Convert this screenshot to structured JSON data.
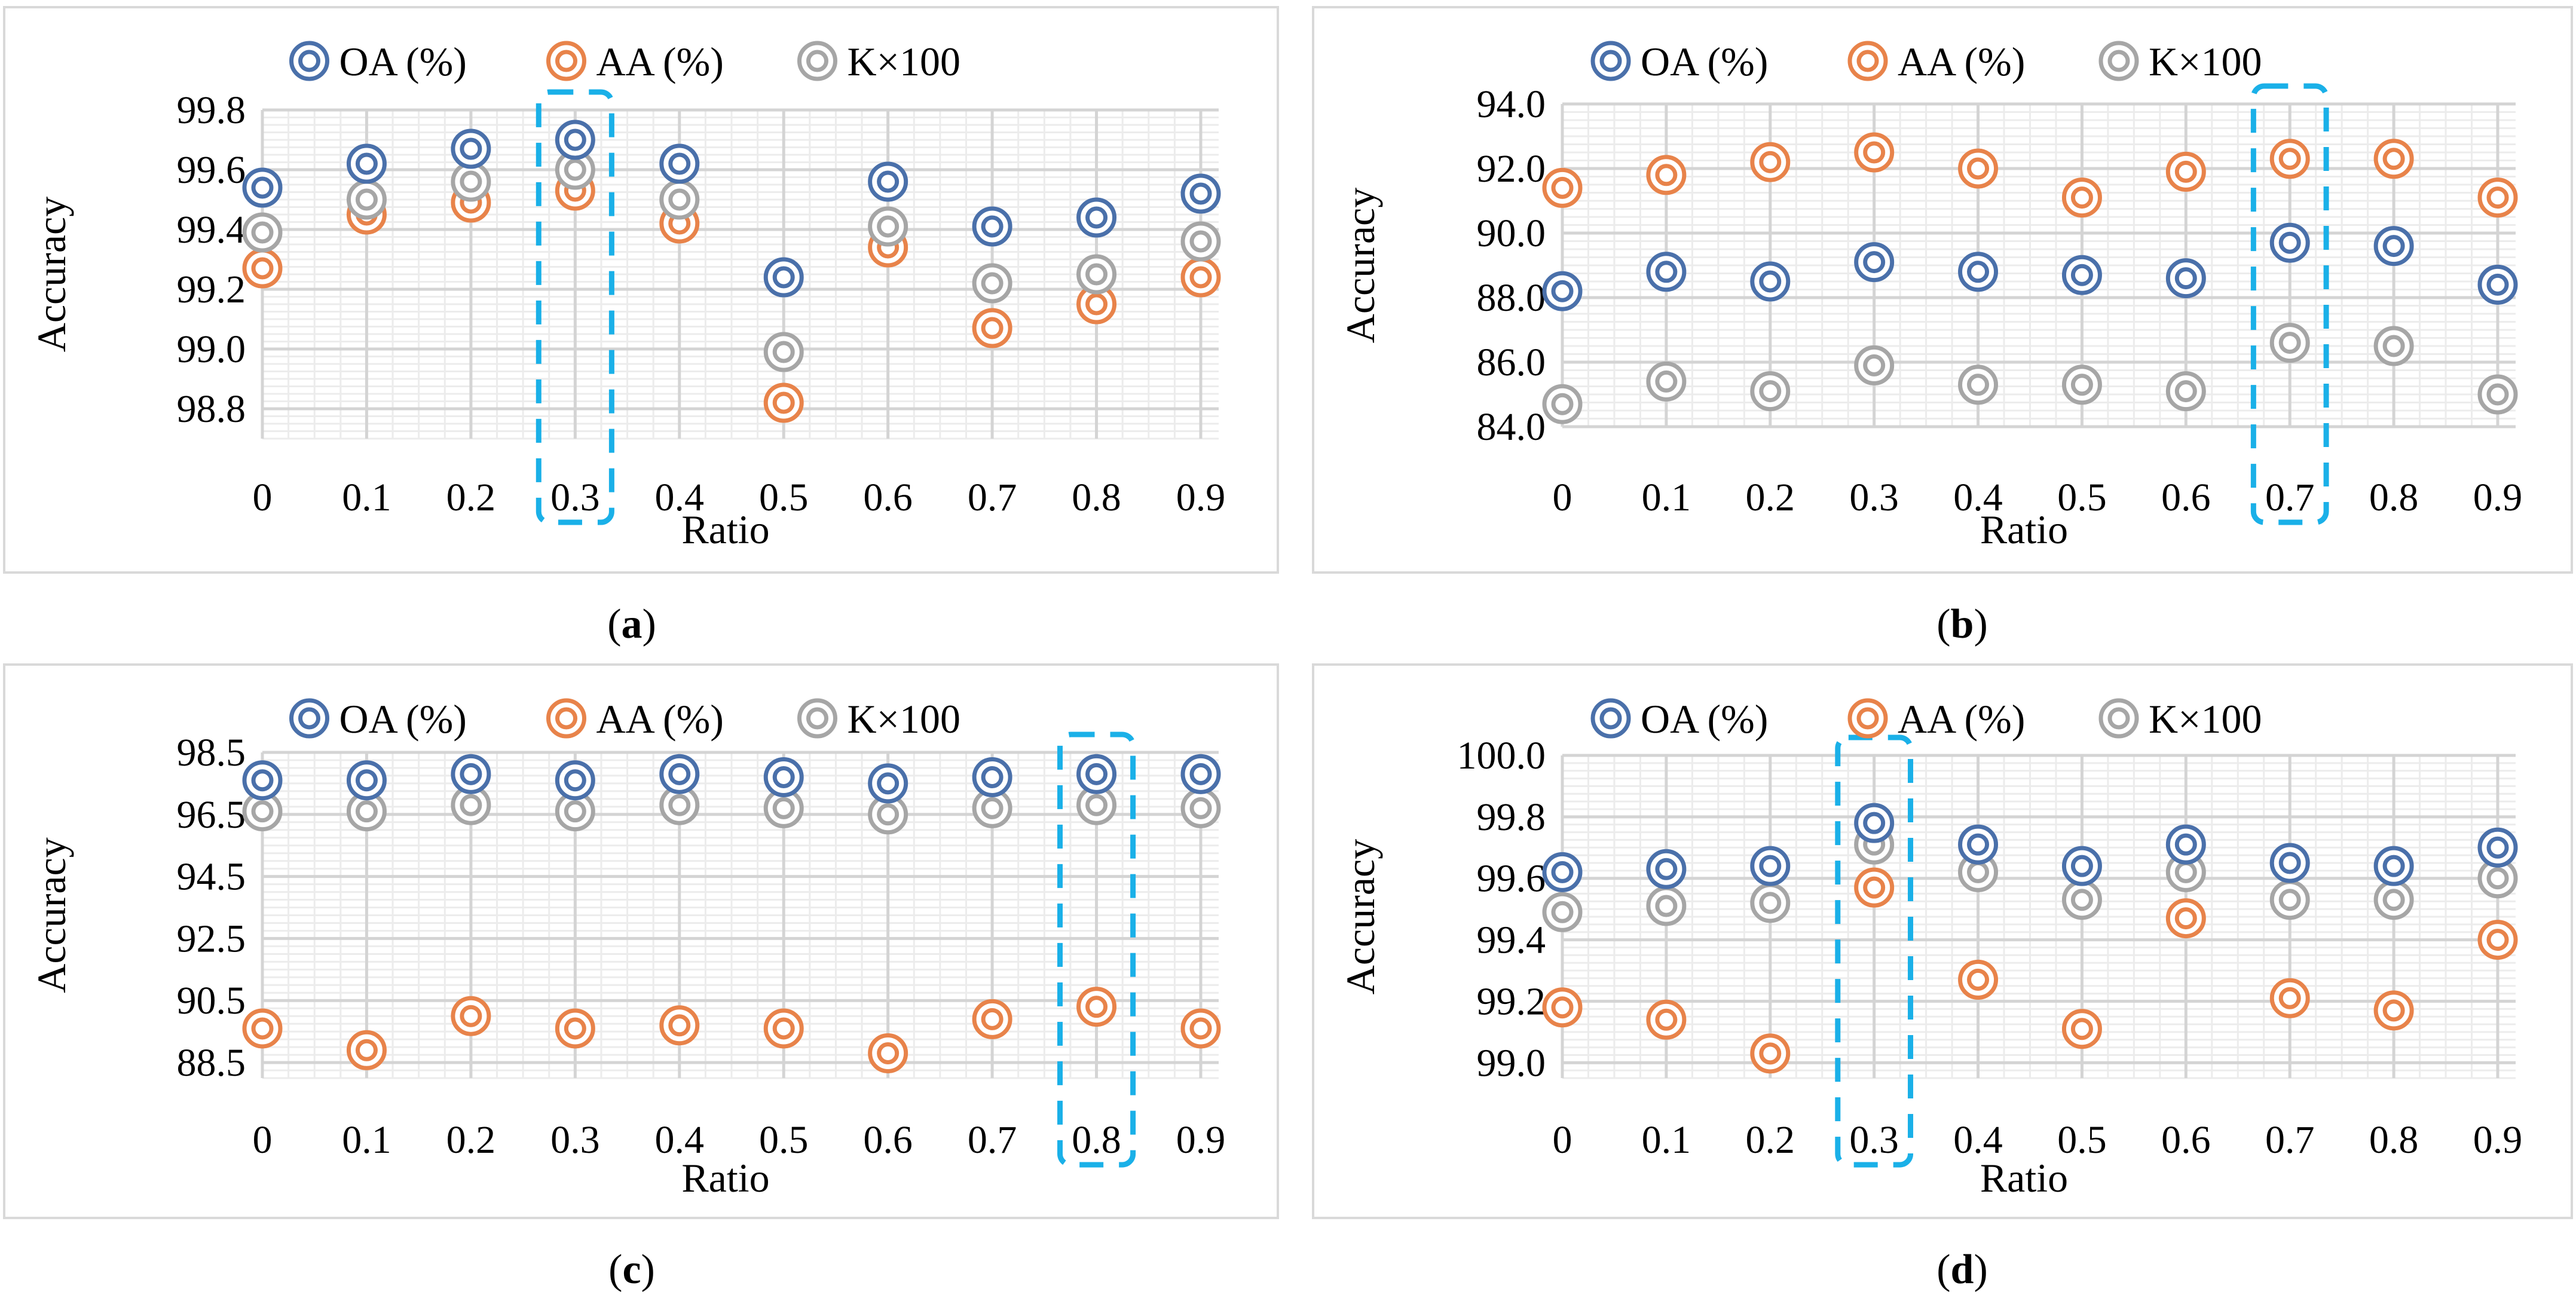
{
  "legend": {
    "oa": "OA (%)",
    "aa": "AA (%)",
    "k": "K×100"
  },
  "colors": {
    "oa": "#4a70aa",
    "aa": "#e8834a",
    "k": "#a6a6a6",
    "highlight": "#1ab0e8",
    "grid_major": "#d4d4d4",
    "grid_minor": "#ececec"
  },
  "captions": [
    {
      "open": "(",
      "letter": "a",
      "close": ")"
    },
    {
      "open": "(",
      "letter": "b",
      "close": ")"
    },
    {
      "open": "(",
      "letter": "c",
      "close": ")"
    },
    {
      "open": "(",
      "letter": "d",
      "close": ")"
    }
  ],
  "chart_data": [
    {
      "type": "scatter",
      "panel": "a",
      "xlabel": "Ratio",
      "ylabel": "Accuracy",
      "categories": [
        "0",
        "0.1",
        "0.2",
        "0.3",
        "0.4",
        "0.5",
        "0.6",
        "0.7",
        "0.8",
        "0.9"
      ],
      "ylim": [
        98.7,
        99.8
      ],
      "yticks": [
        98.8,
        99.0,
        99.2,
        99.4,
        99.6,
        99.8
      ],
      "ytick_labels": [
        "98.8",
        "99.0",
        "99.2",
        "99.4",
        "99.6",
        "99.8"
      ],
      "highlight_index": 3,
      "series": [
        {
          "name": "OA (%)",
          "key": "oa",
          "values": [
            99.54,
            99.62,
            99.67,
            99.7,
            99.62,
            99.24,
            99.56,
            99.41,
            99.44,
            99.52
          ]
        },
        {
          "name": "AA (%)",
          "key": "aa",
          "values": [
            99.27,
            99.45,
            99.49,
            99.53,
            99.42,
            98.82,
            99.34,
            99.07,
            99.15,
            99.24
          ]
        },
        {
          "name": "K×100",
          "key": "k",
          "values": [
            99.39,
            99.5,
            99.56,
            99.6,
            99.5,
            98.99,
            99.41,
            99.22,
            99.25,
            99.36
          ]
        }
      ]
    },
    {
      "type": "scatter",
      "panel": "b",
      "xlabel": "Ratio",
      "ylabel": "Accuracy",
      "categories": [
        "0",
        "0.1",
        "0.2",
        "0.3",
        "0.4",
        "0.5",
        "0.6",
        "0.7",
        "0.8",
        "0.9"
      ],
      "ylim": [
        84.0,
        94.0
      ],
      "yticks": [
        84.0,
        86.0,
        88.0,
        90.0,
        92.0,
        94.0
      ],
      "ytick_labels": [
        "84.0",
        "86.0",
        "88.0",
        "90.0",
        "92.0",
        "94.0"
      ],
      "highlight_index": 7,
      "series": [
        {
          "name": "OA (%)",
          "key": "oa",
          "values": [
            88.2,
            88.8,
            88.5,
            89.1,
            88.8,
            88.7,
            88.6,
            89.7,
            89.6,
            88.4
          ]
        },
        {
          "name": "AA (%)",
          "key": "aa",
          "values": [
            91.4,
            91.8,
            92.2,
            92.5,
            92.0,
            91.1,
            91.9,
            92.3,
            92.3,
            91.1
          ]
        },
        {
          "name": "K×100",
          "key": "k",
          "values": [
            84.7,
            85.4,
            85.1,
            85.9,
            85.3,
            85.3,
            85.1,
            86.6,
            86.5,
            85.0
          ]
        }
      ]
    },
    {
      "type": "scatter",
      "panel": "c",
      "xlabel": "Ratio",
      "ylabel": "Accuracy",
      "categories": [
        "0",
        "0.1",
        "0.2",
        "0.3",
        "0.4",
        "0.5",
        "0.6",
        "0.7",
        "0.8",
        "0.9"
      ],
      "ylim": [
        88.0,
        98.5
      ],
      "yticks": [
        88.5,
        90.5,
        92.5,
        94.5,
        96.5,
        98.5
      ],
      "ytick_labels": [
        "88.5",
        "90.5",
        "92.5",
        "94.5",
        "96.5",
        "98.5"
      ],
      "highlight_index": 8,
      "series": [
        {
          "name": "OA (%)",
          "key": "oa",
          "values": [
            97.6,
            97.6,
            97.8,
            97.6,
            97.8,
            97.7,
            97.5,
            97.7,
            97.8,
            97.8
          ]
        },
        {
          "name": "AA (%)",
          "key": "aa",
          "values": [
            89.6,
            88.9,
            90.0,
            89.6,
            89.7,
            89.6,
            88.8,
            89.9,
            90.3,
            89.6
          ]
        },
        {
          "name": "K×100",
          "key": "k",
          "values": [
            96.6,
            96.6,
            96.8,
            96.6,
            96.8,
            96.7,
            96.5,
            96.7,
            96.8,
            96.7
          ]
        }
      ]
    },
    {
      "type": "scatter",
      "panel": "d",
      "xlabel": "Ratio",
      "ylabel": "Accuracy",
      "categories": [
        "0",
        "0.1",
        "0.2",
        "0.3",
        "0.4",
        "0.5",
        "0.6",
        "0.7",
        "0.8",
        "0.9"
      ],
      "ylim": [
        98.95,
        100.0
      ],
      "yticks": [
        99.0,
        99.2,
        99.4,
        99.6,
        99.8,
        100.0
      ],
      "ytick_labels": [
        "99.0",
        "99.2",
        "99.4",
        "99.6",
        "99.8",
        "100.0"
      ],
      "highlight_index": 3,
      "series": [
        {
          "name": "OA (%)",
          "key": "oa",
          "values": [
            99.62,
            99.63,
            99.64,
            99.78,
            99.71,
            99.64,
            99.71,
            99.65,
            99.64,
            99.7
          ]
        },
        {
          "name": "AA (%)",
          "key": "aa",
          "values": [
            99.18,
            99.14,
            99.03,
            99.57,
            99.27,
            99.11,
            99.47,
            99.21,
            99.17,
            99.4
          ]
        },
        {
          "name": "K×100",
          "key": "k",
          "values": [
            99.49,
            99.51,
            99.52,
            99.71,
            99.62,
            99.53,
            99.62,
            99.53,
            99.53,
            99.6
          ]
        }
      ]
    }
  ]
}
